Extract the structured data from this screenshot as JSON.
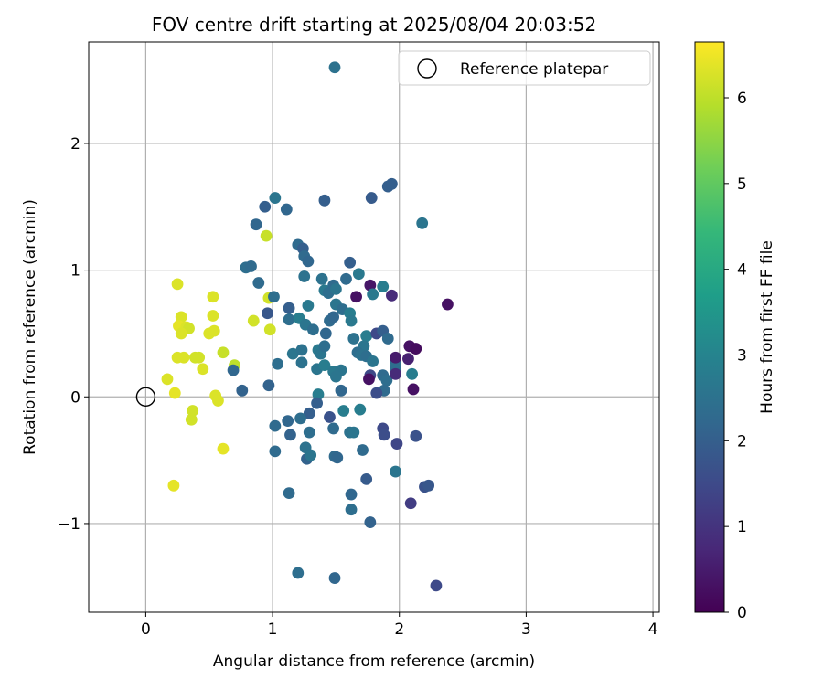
{
  "chart_data": {
    "type": "scatter",
    "title": "FOV centre drift starting at 2025/08/04 20:03:52",
    "xlabel": "Angular distance from reference (arcmin)",
    "ylabel": "Rotation from reference (arcmin)",
    "xlim": [
      -0.45,
      4.05
    ],
    "ylim": [
      -1.7,
      2.8
    ],
    "xticks": [
      0,
      1,
      2,
      3,
      4
    ],
    "xtick_labels": [
      "0",
      "1",
      "2",
      "3",
      "4"
    ],
    "yticks": [
      -1,
      0,
      1,
      2
    ],
    "ytick_labels": [
      "−1",
      "0",
      "1",
      "2"
    ],
    "grid": true,
    "legend": {
      "position": "top-right",
      "label": "Reference platepar"
    },
    "reference_point": {
      "x": 0,
      "y": 0
    },
    "colorbar": {
      "label": "Hours from first FF file",
      "range": [
        0,
        6.65
      ],
      "ticks": [
        0,
        1,
        2,
        3,
        4,
        5,
        6
      ],
      "tick_labels": [
        "0",
        "1",
        "2",
        "3",
        "4",
        "5",
        "6"
      ],
      "colormap": "viridis",
      "colors": [
        "#440154",
        "#482878",
        "#3e4989",
        "#31688e",
        "#26828e",
        "#1f9e89",
        "#35b779",
        "#6ece58",
        "#b5de2b",
        "#fde725"
      ]
    },
    "points": [
      {
        "x": 0.25,
        "y": 0.89,
        "h": 6.3
      },
      {
        "x": 0.53,
        "y": 0.79,
        "h": 6.3
      },
      {
        "x": 0.97,
        "y": 0.78,
        "h": 6.2
      },
      {
        "x": 0.95,
        "y": 1.27,
        "h": 6.1
      },
      {
        "x": 0.28,
        "y": 0.63,
        "h": 6.3
      },
      {
        "x": 0.53,
        "y": 0.64,
        "h": 6.3
      },
      {
        "x": 0.85,
        "y": 0.6,
        "h": 6.2
      },
      {
        "x": 0.26,
        "y": 0.56,
        "h": 6.4
      },
      {
        "x": 0.32,
        "y": 0.55,
        "h": 6.3
      },
      {
        "x": 0.34,
        "y": 0.54,
        "h": 6.2
      },
      {
        "x": 0.28,
        "y": 0.5,
        "h": 6.3
      },
      {
        "x": 0.5,
        "y": 0.5,
        "h": 6.3
      },
      {
        "x": 0.54,
        "y": 0.52,
        "h": 6.3
      },
      {
        "x": 0.98,
        "y": 0.53,
        "h": 6.2
      },
      {
        "x": 0.61,
        "y": 0.35,
        "h": 6.1
      },
      {
        "x": 0.25,
        "y": 0.31,
        "h": 6.3
      },
      {
        "x": 0.3,
        "y": 0.31,
        "h": 6.3
      },
      {
        "x": 0.39,
        "y": 0.31,
        "h": 6.2
      },
      {
        "x": 0.42,
        "y": 0.31,
        "h": 6.2
      },
      {
        "x": 0.45,
        "y": 0.22,
        "h": 6.3
      },
      {
        "x": 0.7,
        "y": 0.25,
        "h": 6.0
      },
      {
        "x": 0.17,
        "y": 0.14,
        "h": 6.3
      },
      {
        "x": 0.23,
        "y": 0.03,
        "h": 6.4
      },
      {
        "x": 0.55,
        "y": 0.01,
        "h": 6.3
      },
      {
        "x": 0.57,
        "y": -0.03,
        "h": 6.3
      },
      {
        "x": 0.37,
        "y": -0.11,
        "h": 6.2
      },
      {
        "x": 0.36,
        "y": -0.18,
        "h": 6.2
      },
      {
        "x": 0.61,
        "y": -0.41,
        "h": 6.4
      },
      {
        "x": 0.22,
        "y": -0.7,
        "h": 6.4
      },
      {
        "x": 0.69,
        "y": 0.21,
        "h": 2.2
      },
      {
        "x": 0.76,
        "y": 0.05,
        "h": 2.1
      },
      {
        "x": 0.79,
        "y": 1.02,
        "h": 2.4
      },
      {
        "x": 0.83,
        "y": 1.03,
        "h": 2.3
      },
      {
        "x": 0.87,
        "y": 1.36,
        "h": 2.2
      },
      {
        "x": 0.94,
        "y": 1.5,
        "h": 2.0
      },
      {
        "x": 1.02,
        "y": 1.57,
        "h": 2.6
      },
      {
        "x": 1.11,
        "y": 1.48,
        "h": 2.2
      },
      {
        "x": 1.41,
        "y": 1.55,
        "h": 2.0
      },
      {
        "x": 1.78,
        "y": 1.57,
        "h": 1.9
      },
      {
        "x": 1.91,
        "y": 1.66,
        "h": 2.0
      },
      {
        "x": 1.94,
        "y": 1.68,
        "h": 2.0
      },
      {
        "x": 2.18,
        "y": 1.37,
        "h": 2.6
      },
      {
        "x": 1.49,
        "y": 2.6,
        "h": 2.5
      },
      {
        "x": 0.89,
        "y": 0.9,
        "h": 2.3
      },
      {
        "x": 0.96,
        "y": 0.66,
        "h": 1.8
      },
      {
        "x": 1.01,
        "y": 0.79,
        "h": 2.4
      },
      {
        "x": 1.13,
        "y": 0.7,
        "h": 2.0
      },
      {
        "x": 1.13,
        "y": 0.61,
        "h": 2.4
      },
      {
        "x": 1.2,
        "y": 1.2,
        "h": 2.3
      },
      {
        "x": 1.24,
        "y": 1.17,
        "h": 2.0
      },
      {
        "x": 1.25,
        "y": 1.11,
        "h": 2.3
      },
      {
        "x": 1.28,
        "y": 1.07,
        "h": 2.2
      },
      {
        "x": 1.25,
        "y": 0.95,
        "h": 2.5
      },
      {
        "x": 1.21,
        "y": 0.62,
        "h": 2.8
      },
      {
        "x": 1.26,
        "y": 0.57,
        "h": 2.6
      },
      {
        "x": 1.32,
        "y": 0.53,
        "h": 2.4
      },
      {
        "x": 1.28,
        "y": 0.72,
        "h": 2.7
      },
      {
        "x": 1.39,
        "y": 0.93,
        "h": 2.5
      },
      {
        "x": 1.41,
        "y": 0.84,
        "h": 2.7
      },
      {
        "x": 1.44,
        "y": 0.82,
        "h": 2.4
      },
      {
        "x": 1.48,
        "y": 0.88,
        "h": 2.3
      },
      {
        "x": 1.5,
        "y": 0.85,
        "h": 2.6
      },
      {
        "x": 1.58,
        "y": 0.93,
        "h": 2.3
      },
      {
        "x": 1.61,
        "y": 1.06,
        "h": 2.0
      },
      {
        "x": 1.68,
        "y": 0.97,
        "h": 2.7
      },
      {
        "x": 1.5,
        "y": 0.73,
        "h": 2.6
      },
      {
        "x": 1.55,
        "y": 0.69,
        "h": 2.4
      },
      {
        "x": 1.61,
        "y": 0.66,
        "h": 2.8
      },
      {
        "x": 1.62,
        "y": 0.6,
        "h": 2.7
      },
      {
        "x": 1.66,
        "y": 0.79,
        "h": 0.3
      },
      {
        "x": 1.77,
        "y": 0.88,
        "h": 0.4
      },
      {
        "x": 1.79,
        "y": 0.81,
        "h": 2.7
      },
      {
        "x": 1.87,
        "y": 0.87,
        "h": 2.8
      },
      {
        "x": 1.94,
        "y": 0.8,
        "h": 0.8
      },
      {
        "x": 2.38,
        "y": 0.73,
        "h": 0.3
      },
      {
        "x": 1.42,
        "y": 0.5,
        "h": 2.2
      },
      {
        "x": 1.45,
        "y": 0.6,
        "h": 2.3
      },
      {
        "x": 1.48,
        "y": 0.63,
        "h": 2.2
      },
      {
        "x": 1.64,
        "y": 0.46,
        "h": 2.5
      },
      {
        "x": 1.74,
        "y": 0.48,
        "h": 2.8
      },
      {
        "x": 1.72,
        "y": 0.4,
        "h": 2.6
      },
      {
        "x": 1.67,
        "y": 0.35,
        "h": 2.4
      },
      {
        "x": 1.7,
        "y": 0.33,
        "h": 2.5
      },
      {
        "x": 1.82,
        "y": 0.5,
        "h": 1.5
      },
      {
        "x": 1.87,
        "y": 0.52,
        "h": 2.0
      },
      {
        "x": 1.91,
        "y": 0.46,
        "h": 2.3
      },
      {
        "x": 1.36,
        "y": 0.37,
        "h": 2.7
      },
      {
        "x": 1.38,
        "y": 0.34,
        "h": 2.6
      },
      {
        "x": 1.41,
        "y": 0.4,
        "h": 2.4
      },
      {
        "x": 1.16,
        "y": 0.34,
        "h": 2.6
      },
      {
        "x": 1.23,
        "y": 0.37,
        "h": 2.5
      },
      {
        "x": 1.23,
        "y": 0.27,
        "h": 2.5
      },
      {
        "x": 1.04,
        "y": 0.26,
        "h": 2.4
      },
      {
        "x": 1.35,
        "y": 0.22,
        "h": 2.6
      },
      {
        "x": 1.41,
        "y": 0.25,
        "h": 2.8
      },
      {
        "x": 1.48,
        "y": 0.2,
        "h": 2.7
      },
      {
        "x": 1.54,
        "y": 0.21,
        "h": 2.6
      },
      {
        "x": 1.5,
        "y": 0.16,
        "h": 2.6
      },
      {
        "x": 1.74,
        "y": 0.32,
        "h": 2.4
      },
      {
        "x": 1.79,
        "y": 0.28,
        "h": 2.6
      },
      {
        "x": 1.77,
        "y": 0.17,
        "h": 1.5
      },
      {
        "x": 1.87,
        "y": 0.17,
        "h": 2.3
      },
      {
        "x": 1.9,
        "y": 0.13,
        "h": 2.4
      },
      {
        "x": 1.97,
        "y": 0.23,
        "h": 2.4
      },
      {
        "x": 1.97,
        "y": 0.28,
        "h": 2.4
      },
      {
        "x": 1.97,
        "y": 0.31,
        "h": 0.5
      },
      {
        "x": 2.07,
        "y": 0.3,
        "h": 0.6
      },
      {
        "x": 2.08,
        "y": 0.4,
        "h": 0.3
      },
      {
        "x": 2.13,
        "y": 0.38,
        "h": 0.2
      },
      {
        "x": 2.1,
        "y": 0.18,
        "h": 2.8
      },
      {
        "x": 2.11,
        "y": 0.06,
        "h": 0.3
      },
      {
        "x": 1.97,
        "y": 0.18,
        "h": 0.8
      },
      {
        "x": 1.76,
        "y": 0.14,
        "h": 0.3
      },
      {
        "x": 1.88,
        "y": 0.05,
        "h": 2.3
      },
      {
        "x": 1.82,
        "y": 0.03,
        "h": 1.6
      },
      {
        "x": 0.97,
        "y": 0.09,
        "h": 2.1
      },
      {
        "x": 1.54,
        "y": 0.05,
        "h": 2.2
      },
      {
        "x": 1.36,
        "y": 0.02,
        "h": 2.8
      },
      {
        "x": 1.35,
        "y": -0.05,
        "h": 2.0
      },
      {
        "x": 1.29,
        "y": -0.13,
        "h": 2.0
      },
      {
        "x": 1.12,
        "y": -0.19,
        "h": 2.2
      },
      {
        "x": 1.22,
        "y": -0.17,
        "h": 2.4
      },
      {
        "x": 1.02,
        "y": -0.23,
        "h": 2.3
      },
      {
        "x": 1.45,
        "y": -0.16,
        "h": 1.7
      },
      {
        "x": 1.48,
        "y": -0.25,
        "h": 2.3
      },
      {
        "x": 1.56,
        "y": -0.11,
        "h": 2.8
      },
      {
        "x": 1.61,
        "y": -0.28,
        "h": 2.5
      },
      {
        "x": 1.64,
        "y": -0.28,
        "h": 2.6
      },
      {
        "x": 1.69,
        "y": -0.1,
        "h": 2.8
      },
      {
        "x": 1.87,
        "y": -0.25,
        "h": 1.5
      },
      {
        "x": 1.88,
        "y": -0.3,
        "h": 1.6
      },
      {
        "x": 1.98,
        "y": -0.37,
        "h": 1.4
      },
      {
        "x": 2.13,
        "y": -0.31,
        "h": 1.7
      },
      {
        "x": 1.14,
        "y": -0.3,
        "h": 2.1
      },
      {
        "x": 1.26,
        "y": -0.4,
        "h": 2.5
      },
      {
        "x": 1.29,
        "y": -0.28,
        "h": 2.4
      },
      {
        "x": 1.02,
        "y": -0.43,
        "h": 2.3
      },
      {
        "x": 1.27,
        "y": -0.49,
        "h": 2.1
      },
      {
        "x": 1.49,
        "y": -0.47,
        "h": 2.3
      },
      {
        "x": 1.51,
        "y": -0.48,
        "h": 2.2
      },
      {
        "x": 1.71,
        "y": -0.42,
        "h": 2.3
      },
      {
        "x": 1.3,
        "y": -0.46,
        "h": 2.6
      },
      {
        "x": 1.97,
        "y": -0.59,
        "h": 2.6
      },
      {
        "x": 1.74,
        "y": -0.65,
        "h": 1.9
      },
      {
        "x": 1.62,
        "y": -0.77,
        "h": 2.2
      },
      {
        "x": 1.13,
        "y": -0.76,
        "h": 2.3
      },
      {
        "x": 2.09,
        "y": -0.84,
        "h": 1.2
      },
      {
        "x": 2.2,
        "y": -0.71,
        "h": 1.7
      },
      {
        "x": 2.23,
        "y": -0.7,
        "h": 1.8
      },
      {
        "x": 1.62,
        "y": -0.89,
        "h": 2.4
      },
      {
        "x": 1.77,
        "y": -0.99,
        "h": 2.1
      },
      {
        "x": 1.2,
        "y": -1.39,
        "h": 2.4
      },
      {
        "x": 1.49,
        "y": -1.43,
        "h": 2.2
      },
      {
        "x": 2.29,
        "y": -1.49,
        "h": 1.5
      }
    ]
  }
}
